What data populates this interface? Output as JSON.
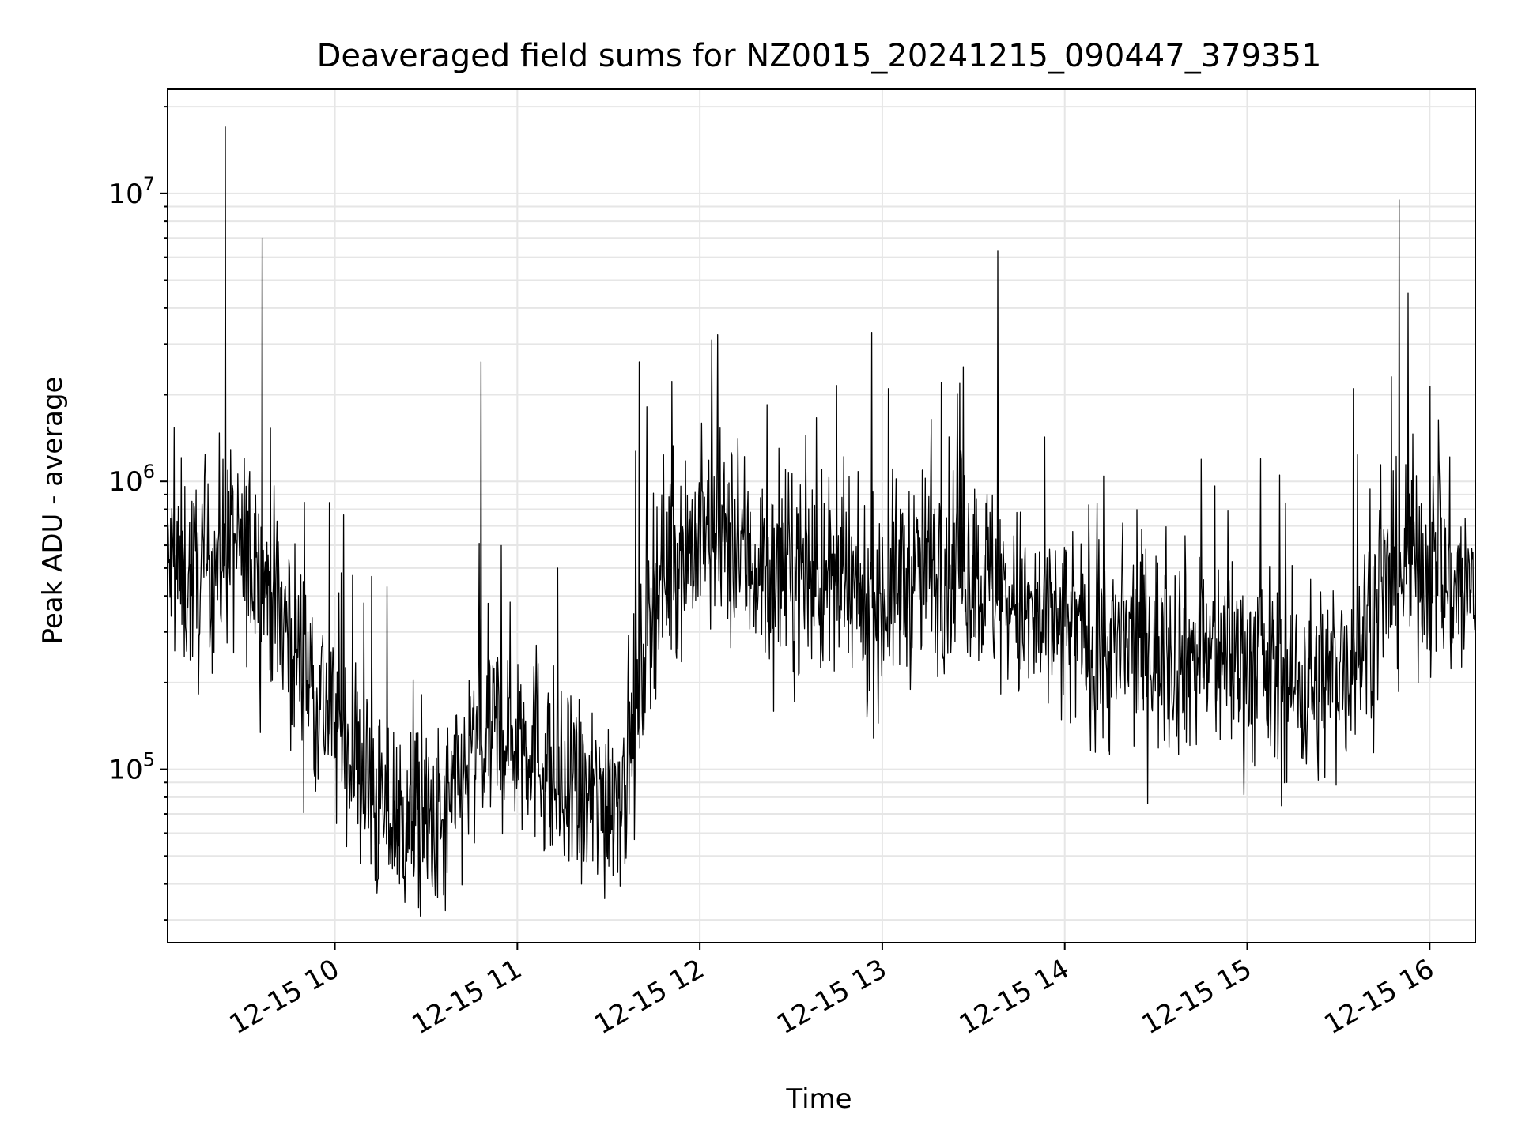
{
  "chart_data": {
    "type": "line",
    "title": "Deaveraged field sums for NZ0015_20241215_090447_379351",
    "xlabel": "Time",
    "ylabel": "Peak ADU - average",
    "yscale": "log",
    "grid": true,
    "line_color": "#000000",
    "grid_color": "#e6e6e6",
    "xlim": [
      "2024-12-15 09:05",
      "2024-12-15 16:15"
    ],
    "ylim": [
      25000,
      23000000
    ],
    "x_ticks": [
      {
        "value": "2024-12-15 10:00",
        "label": "12-15 10"
      },
      {
        "value": "2024-12-15 11:00",
        "label": "12-15 11"
      },
      {
        "value": "2024-12-15 12:00",
        "label": "12-15 12"
      },
      {
        "value": "2024-12-15 13:00",
        "label": "12-15 13"
      },
      {
        "value": "2024-12-15 14:00",
        "label": "12-15 14"
      },
      {
        "value": "2024-12-15 15:00",
        "label": "12-15 15"
      },
      {
        "value": "2024-12-15 16:00",
        "label": "12-15 16"
      }
    ],
    "y_ticks": [
      {
        "value": 100000,
        "base": "10",
        "exp": "5"
      },
      {
        "value": 1000000,
        "base": "10",
        "exp": "6"
      },
      {
        "value": 10000000,
        "base": "10",
        "exp": "7"
      }
    ],
    "series": [
      {
        "x": [
          "2024-12-15 09:05",
          "2024-12-15 09:15",
          "2024-12-15 09:25",
          "2024-12-15 09:35",
          "2024-12-15 09:45",
          "2024-12-15 09:55",
          "2024-12-15 10:05",
          "2024-12-15 10:15",
          "2024-12-15 10:25",
          "2024-12-15 10:35",
          "2024-12-15 10:45",
          "2024-12-15 10:55",
          "2024-12-15 11:05",
          "2024-12-15 11:15",
          "2024-12-15 11:25",
          "2024-12-15 11:35",
          "2024-12-15 11:45",
          "2024-12-15 11:55",
          "2024-12-15 12:05",
          "2024-12-15 12:15",
          "2024-12-15 12:25",
          "2024-12-15 12:35",
          "2024-12-15 12:45",
          "2024-12-15 12:55",
          "2024-12-15 13:05",
          "2024-12-15 13:15",
          "2024-12-15 13:25",
          "2024-12-15 13:35",
          "2024-12-15 13:45",
          "2024-12-15 13:55",
          "2024-12-15 14:05",
          "2024-12-15 14:15",
          "2024-12-15 14:25",
          "2024-12-15 14:35",
          "2024-12-15 14:45",
          "2024-12-15 14:55",
          "2024-12-15 15:05",
          "2024-12-15 15:15",
          "2024-12-15 15:25",
          "2024-12-15 15:35",
          "2024-12-15 15:45",
          "2024-12-15 15:55",
          "2024-12-15 16:05",
          "2024-12-15 16:15"
        ],
        "y": [
          500000,
          450000,
          600000,
          500000,
          300000,
          180000,
          120000,
          70000,
          65000,
          60000,
          110000,
          140000,
          130000,
          80000,
          75000,
          90000,
          450000,
          600000,
          650000,
          550000,
          450000,
          500000,
          420000,
          350000,
          450000,
          500000,
          550000,
          450000,
          350000,
          300000,
          300000,
          250000,
          280000,
          260000,
          250000,
          250000,
          220000,
          200000,
          200000,
          250000,
          400000,
          550000,
          450000,
          400000
        ],
        "peaks": [
          {
            "x": "2024-12-15 09:24",
            "y": 17000000
          },
          {
            "x": "2024-12-15 09:36",
            "y": 7000000
          },
          {
            "x": "2024-12-15 10:48",
            "y": 2600000
          },
          {
            "x": "2024-12-15 11:40",
            "y": 2600000
          },
          {
            "x": "2024-12-15 12:04",
            "y": 3100000
          },
          {
            "x": "2024-12-15 13:38",
            "y": 6300000
          },
          {
            "x": "2024-12-15 15:50",
            "y": 9500000
          },
          {
            "x": "2024-12-15 15:53",
            "y": 4500000
          },
          {
            "x": "2024-12-15 13:02",
            "y": 2100000
          },
          {
            "x": "2024-12-15 15:35",
            "y": 2100000
          }
        ]
      }
    ]
  }
}
